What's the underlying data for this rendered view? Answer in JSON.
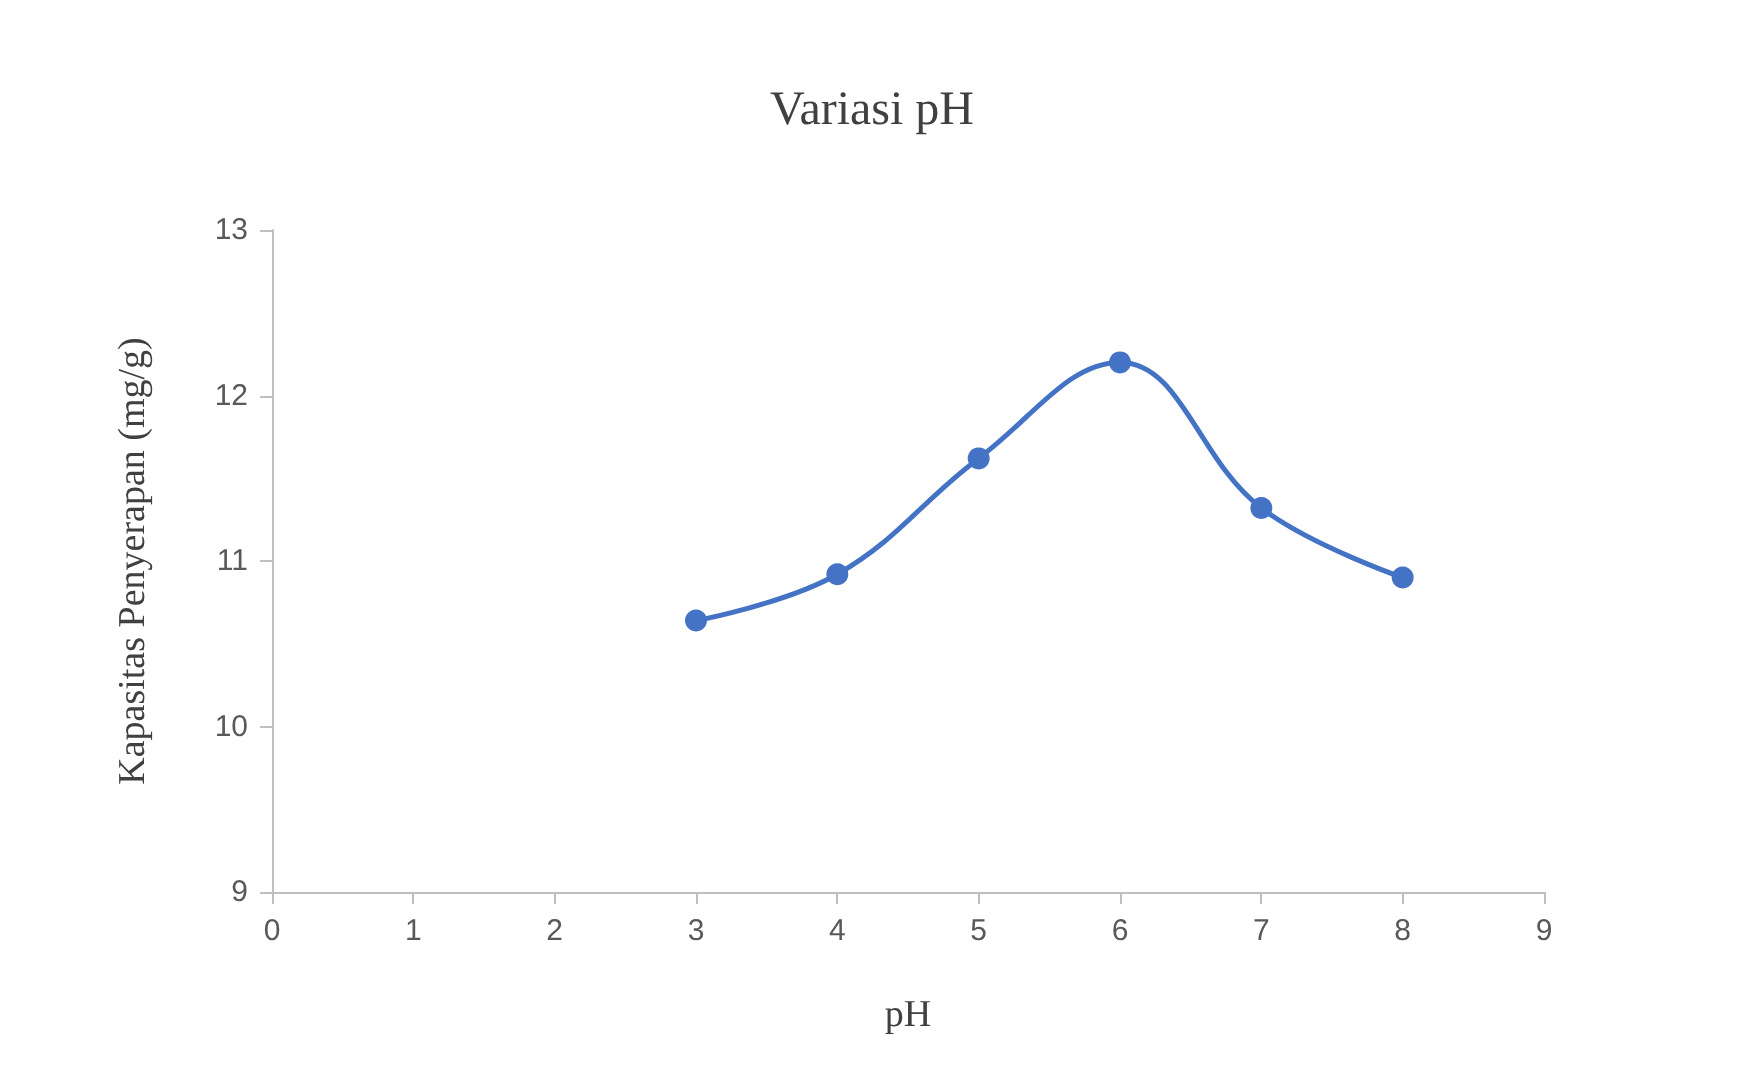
{
  "chart_data": {
    "type": "line",
    "title": "Variasi pH",
    "xlabel": "pH",
    "ylabel": "Kapasitas Penyerapan (mg/g)",
    "x": [
      3,
      4,
      5,
      6,
      7,
      8
    ],
    "series": [
      {
        "color": "#4472c4",
        "values": [
          10.64,
          10.92,
          11.62,
          12.2,
          11.32,
          10.9
        ]
      }
    ],
    "xlim": [
      0,
      9
    ],
    "xticks": [
      0,
      1,
      2,
      3,
      4,
      5,
      6,
      7,
      8,
      9
    ],
    "ylim": [
      9,
      13
    ],
    "yticks": [
      9,
      10,
      11,
      12,
      13
    ],
    "grid": false,
    "marker": "circle",
    "line_style": "solid"
  }
}
